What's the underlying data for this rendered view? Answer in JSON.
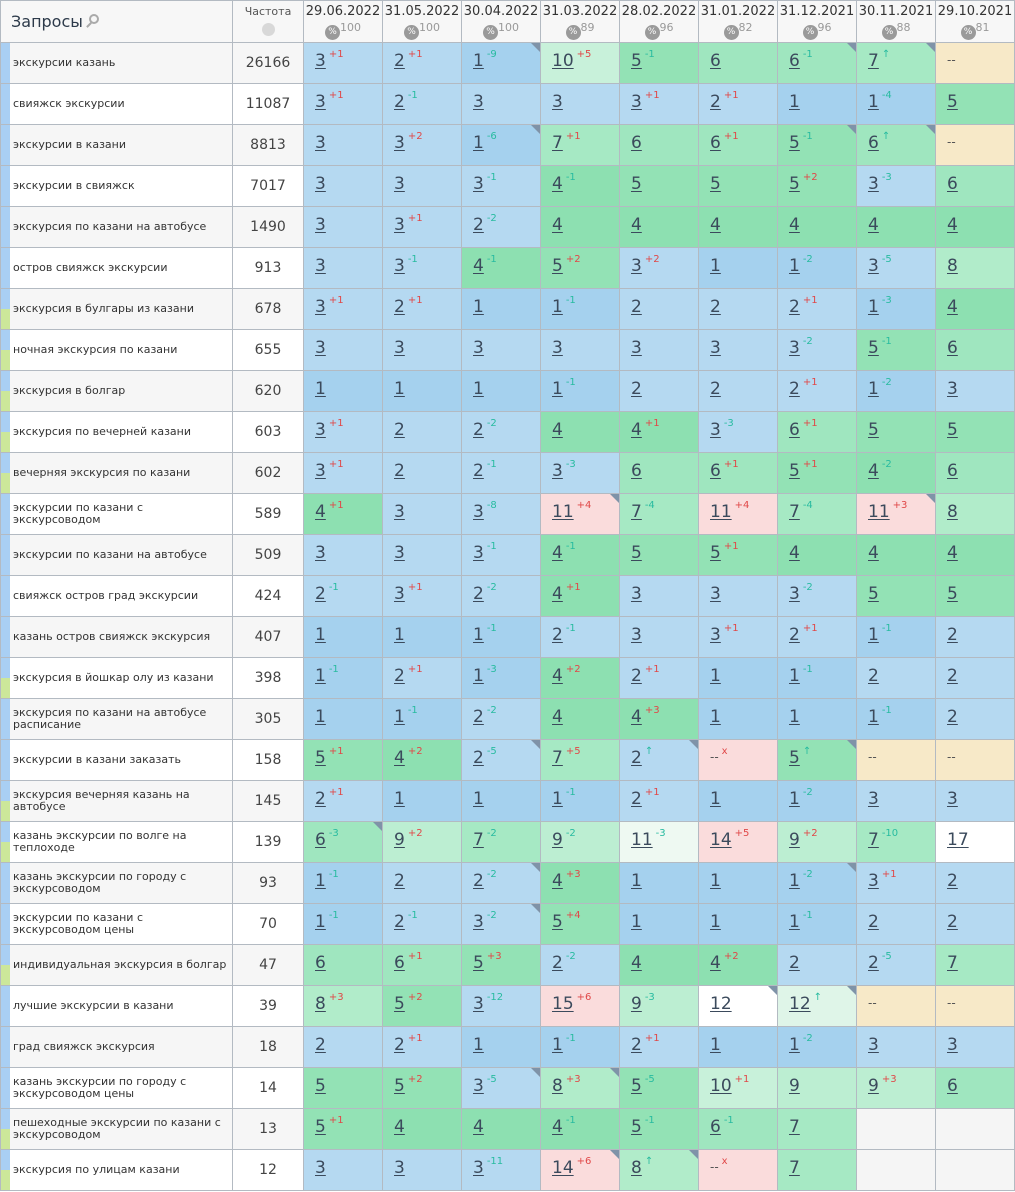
{
  "header": {
    "queries_title": "Запросы",
    "freq_title": "Частота",
    "dates": [
      {
        "date": "29.06.2022",
        "pct": "100"
      },
      {
        "date": "31.05.2022",
        "pct": "100"
      },
      {
        "date": "30.04.2022",
        "pct": "100"
      },
      {
        "date": "31.03.2022",
        "pct": "89"
      },
      {
        "date": "28.02.2022",
        "pct": "96"
      },
      {
        "date": "31.01.2022",
        "pct": "82"
      },
      {
        "date": "31.12.2021",
        "pct": "96"
      },
      {
        "date": "30.11.2021",
        "pct": "88"
      },
      {
        "date": "29.10.2021",
        "pct": "81"
      }
    ]
  },
  "icons": {
    "search": "search-icon",
    "globe": "globe-icon",
    "percent": "percent-icon"
  },
  "colors": {
    "worse": "#e04848",
    "better": "#28bba0",
    "pos1": "#a5d1ee",
    "pos2_3": "#b5d9f1",
    "pos4_5": "#8fe1b2",
    "dropped": "#fadcdc",
    "none": "#f7e9c8"
  },
  "rows": [
    {
      "q": "экскурсии казань",
      "freq": "26166",
      "tag": "",
      "cells": [
        [
          "3",
          "+1"
        ],
        [
          "2",
          "+1"
        ],
        [
          "1",
          "-9",
          1
        ],
        [
          "10",
          "+5"
        ],
        [
          "5",
          "-1"
        ],
        [
          "6",
          ""
        ],
        [
          "6",
          "-1",
          1
        ],
        [
          "7",
          "↑",
          1
        ],
        [
          "--",
          ""
        ]
      ]
    },
    {
      "q": "свияжск экскурсии",
      "freq": "11087",
      "tag": "",
      "cells": [
        [
          "3",
          "+1"
        ],
        [
          "2",
          "-1"
        ],
        [
          "3",
          ""
        ],
        [
          "3",
          ""
        ],
        [
          "3",
          "+1"
        ],
        [
          "2",
          "+1"
        ],
        [
          "1",
          ""
        ],
        [
          "1",
          "-4"
        ],
        [
          "5",
          ""
        ]
      ]
    },
    {
      "q": "экскурсии в казани",
      "freq": "8813",
      "tag": "",
      "cells": [
        [
          "3",
          ""
        ],
        [
          "3",
          "+2"
        ],
        [
          "1",
          "-6",
          1
        ],
        [
          "7",
          "+1"
        ],
        [
          "6",
          ""
        ],
        [
          "6",
          "+1"
        ],
        [
          "5",
          "-1",
          1
        ],
        [
          "6",
          "↑",
          1
        ],
        [
          "--",
          ""
        ]
      ]
    },
    {
      "q": "экскурсии в свияжск",
      "freq": "7017",
      "tag": "",
      "cells": [
        [
          "3",
          ""
        ],
        [
          "3",
          ""
        ],
        [
          "3",
          "-1"
        ],
        [
          "4",
          "-1"
        ],
        [
          "5",
          ""
        ],
        [
          "5",
          ""
        ],
        [
          "5",
          "+2"
        ],
        [
          "3",
          "-3"
        ],
        [
          "6",
          ""
        ]
      ]
    },
    {
      "q": "экскурсия по казани на автобусе",
      "freq": "1490",
      "tag": "",
      "cells": [
        [
          "3",
          ""
        ],
        [
          "3",
          "+1"
        ],
        [
          "2",
          "-2"
        ],
        [
          "4",
          ""
        ],
        [
          "4",
          ""
        ],
        [
          "4",
          ""
        ],
        [
          "4",
          ""
        ],
        [
          "4",
          ""
        ],
        [
          "4",
          ""
        ]
      ]
    },
    {
      "q": "остров свияжск экскурсии",
      "freq": "913",
      "tag": "",
      "cells": [
        [
          "3",
          ""
        ],
        [
          "3",
          "-1"
        ],
        [
          "4",
          "-1"
        ],
        [
          "5",
          "+2"
        ],
        [
          "3",
          "+2"
        ],
        [
          "1",
          ""
        ],
        [
          "1",
          "-2"
        ],
        [
          "3",
          "-5"
        ],
        [
          "8",
          ""
        ]
      ]
    },
    {
      "q": "экскурсия в булгары из казани",
      "freq": "678",
      "tag": "green",
      "cells": [
        [
          "3",
          "+1"
        ],
        [
          "2",
          "+1"
        ],
        [
          "1",
          ""
        ],
        [
          "1",
          "-1"
        ],
        [
          "2",
          ""
        ],
        [
          "2",
          ""
        ],
        [
          "2",
          "+1"
        ],
        [
          "1",
          "-3"
        ],
        [
          "4",
          ""
        ]
      ]
    },
    {
      "q": "ночная экскурсия по казани",
      "freq": "655",
      "tag": "green",
      "cells": [
        [
          "3",
          ""
        ],
        [
          "3",
          ""
        ],
        [
          "3",
          ""
        ],
        [
          "3",
          ""
        ],
        [
          "3",
          ""
        ],
        [
          "3",
          ""
        ],
        [
          "3",
          "-2"
        ],
        [
          "5",
          "-1"
        ],
        [
          "6",
          ""
        ]
      ]
    },
    {
      "q": "экскурсия в болгар",
      "freq": "620",
      "tag": "green",
      "cells": [
        [
          "1",
          ""
        ],
        [
          "1",
          ""
        ],
        [
          "1",
          ""
        ],
        [
          "1",
          "-1"
        ],
        [
          "2",
          ""
        ],
        [
          "2",
          ""
        ],
        [
          "2",
          "+1"
        ],
        [
          "1",
          "-2"
        ],
        [
          "3",
          ""
        ]
      ]
    },
    {
      "q": "экскурсия по вечерней казани",
      "freq": "603",
      "tag": "green",
      "cells": [
        [
          "3",
          "+1"
        ],
        [
          "2",
          ""
        ],
        [
          "2",
          "-2"
        ],
        [
          "4",
          ""
        ],
        [
          "4",
          "+1"
        ],
        [
          "3",
          "-3"
        ],
        [
          "6",
          "+1"
        ],
        [
          "5",
          ""
        ],
        [
          "5",
          ""
        ]
      ]
    },
    {
      "q": "вечерняя экскурсия по казани",
      "freq": "602",
      "tag": "green",
      "cells": [
        [
          "3",
          "+1"
        ],
        [
          "2",
          ""
        ],
        [
          "2",
          "-1"
        ],
        [
          "3",
          "-3"
        ],
        [
          "6",
          ""
        ],
        [
          "6",
          "+1"
        ],
        [
          "5",
          "+1"
        ],
        [
          "4",
          "-2"
        ],
        [
          "6",
          ""
        ]
      ]
    },
    {
      "q": "экскурсии по казани с экскурсоводом",
      "freq": "589",
      "tag": "",
      "cells": [
        [
          "4",
          "+1"
        ],
        [
          "3",
          ""
        ],
        [
          "3",
          "-8"
        ],
        [
          "11",
          "+4",
          1
        ],
        [
          "7",
          "-4"
        ],
        [
          "11",
          "+4"
        ],
        [
          "7",
          "-4"
        ],
        [
          "11",
          "+3",
          1
        ],
        [
          "8",
          ""
        ]
      ]
    },
    {
      "q": "экскурсии по казани на автобусе",
      "freq": "509",
      "tag": "",
      "cells": [
        [
          "3",
          ""
        ],
        [
          "3",
          ""
        ],
        [
          "3",
          "-1"
        ],
        [
          "4",
          "-1"
        ],
        [
          "5",
          ""
        ],
        [
          "5",
          "+1"
        ],
        [
          "4",
          ""
        ],
        [
          "4",
          ""
        ],
        [
          "4",
          ""
        ]
      ]
    },
    {
      "q": "свияжск остров град экскурсии",
      "freq": "424",
      "tag": "",
      "cells": [
        [
          "2",
          "-1"
        ],
        [
          "3",
          "+1"
        ],
        [
          "2",
          "-2"
        ],
        [
          "4",
          "+1"
        ],
        [
          "3",
          ""
        ],
        [
          "3",
          ""
        ],
        [
          "3",
          "-2"
        ],
        [
          "5",
          ""
        ],
        [
          "5",
          ""
        ]
      ]
    },
    {
      "q": "казань остров свияжск экскурсия",
      "freq": "407",
      "tag": "",
      "cells": [
        [
          "1",
          ""
        ],
        [
          "1",
          ""
        ],
        [
          "1",
          "-1"
        ],
        [
          "2",
          "-1"
        ],
        [
          "3",
          ""
        ],
        [
          "3",
          "+1"
        ],
        [
          "2",
          "+1"
        ],
        [
          "1",
          "-1"
        ],
        [
          "2",
          ""
        ]
      ]
    },
    {
      "q": "экскурсия в йошкар олу из казани",
      "freq": "398",
      "tag": "green",
      "cells": [
        [
          "1",
          "-1"
        ],
        [
          "2",
          "+1"
        ],
        [
          "1",
          "-3"
        ],
        [
          "4",
          "+2"
        ],
        [
          "2",
          "+1"
        ],
        [
          "1",
          ""
        ],
        [
          "1",
          "-1"
        ],
        [
          "2",
          ""
        ],
        [
          "2",
          ""
        ]
      ]
    },
    {
      "q": "экскурсия по казани на автобусе расписание",
      "freq": "305",
      "tag": "",
      "cells": [
        [
          "1",
          ""
        ],
        [
          "1",
          "-1"
        ],
        [
          "2",
          "-2"
        ],
        [
          "4",
          ""
        ],
        [
          "4",
          "+3"
        ],
        [
          "1",
          ""
        ],
        [
          "1",
          ""
        ],
        [
          "1",
          "-1"
        ],
        [
          "2",
          ""
        ]
      ]
    },
    {
      "q": "экскурсии в казани заказать",
      "freq": "158",
      "tag": "",
      "cells": [
        [
          "5",
          "+1"
        ],
        [
          "4",
          "+2"
        ],
        [
          "2",
          "-5",
          1
        ],
        [
          "7",
          "+5"
        ],
        [
          "2",
          "↑",
          1
        ],
        [
          "--",
          "x"
        ],
        [
          "5",
          "↑",
          1
        ],
        [
          "--",
          ""
        ],
        [
          "--",
          ""
        ]
      ]
    },
    {
      "q": "экскурсия вечерняя казань на автобусе",
      "freq": "145",
      "tag": "green",
      "cells": [
        [
          "2",
          "+1"
        ],
        [
          "1",
          ""
        ],
        [
          "1",
          ""
        ],
        [
          "1",
          "-1"
        ],
        [
          "2",
          "+1"
        ],
        [
          "1",
          ""
        ],
        [
          "1",
          "-2"
        ],
        [
          "3",
          ""
        ],
        [
          "3",
          ""
        ]
      ]
    },
    {
      "q": "казань экскурсии по волге на теплоходе",
      "freq": "139",
      "tag": "green",
      "cells": [
        [
          "6",
          "-3",
          1
        ],
        [
          "9",
          "+2"
        ],
        [
          "7",
          "-2"
        ],
        [
          "9",
          "-2"
        ],
        [
          "11",
          "-3"
        ],
        [
          "14",
          "+5"
        ],
        [
          "9",
          "+2"
        ],
        [
          "7",
          "-10"
        ],
        [
          "17",
          ""
        ]
      ]
    },
    {
      "q": "казань экскурсии по городу с экскурсоводом",
      "freq": "93",
      "tag": "",
      "cells": [
        [
          "1",
          "-1"
        ],
        [
          "2",
          ""
        ],
        [
          "2",
          "-2",
          1
        ],
        [
          "4",
          "+3"
        ],
        [
          "1",
          ""
        ],
        [
          "1",
          ""
        ],
        [
          "1",
          "-2",
          1
        ],
        [
          "3",
          "+1"
        ],
        [
          "2",
          ""
        ]
      ]
    },
    {
      "q": "экскурсии по казани с экскурсоводом цены",
      "freq": "70",
      "tag": "",
      "cells": [
        [
          "1",
          "-1"
        ],
        [
          "2",
          "-1"
        ],
        [
          "3",
          "-2",
          1
        ],
        [
          "5",
          "+4"
        ],
        [
          "1",
          ""
        ],
        [
          "1",
          ""
        ],
        [
          "1",
          "-1"
        ],
        [
          "2",
          ""
        ],
        [
          "2",
          ""
        ]
      ]
    },
    {
      "q": "индивидуальная экскурсия в болгар",
      "freq": "47",
      "tag": "green",
      "cells": [
        [
          "6",
          ""
        ],
        [
          "6",
          "+1"
        ],
        [
          "5",
          "+3"
        ],
        [
          "2",
          "-2"
        ],
        [
          "4",
          ""
        ],
        [
          "4",
          "+2"
        ],
        [
          "2",
          ""
        ],
        [
          "2",
          "-5"
        ],
        [
          "7",
          ""
        ]
      ]
    },
    {
      "q": "лучшие экскурсии в казани",
      "freq": "39",
      "tag": "",
      "cells": [
        [
          "8",
          "+3"
        ],
        [
          "5",
          "+2"
        ],
        [
          "3",
          "-12"
        ],
        [
          "15",
          "+6"
        ],
        [
          "9",
          "-3"
        ],
        [
          "12",
          "",
          1
        ],
        [
          "12",
          "↑",
          1
        ],
        [
          "--",
          ""
        ],
        [
          "--",
          ""
        ]
      ]
    },
    {
      "q": "град свияжск экскурсия",
      "freq": "18",
      "tag": "",
      "cells": [
        [
          "2",
          ""
        ],
        [
          "2",
          "+1"
        ],
        [
          "1",
          ""
        ],
        [
          "1",
          "-1"
        ],
        [
          "2",
          "+1"
        ],
        [
          "1",
          ""
        ],
        [
          "1",
          "-2"
        ],
        [
          "3",
          ""
        ],
        [
          "3",
          ""
        ]
      ]
    },
    {
      "q": "казань экскурсии по городу с экскурсоводом цены",
      "freq": "14",
      "tag": "",
      "cells": [
        [
          "5",
          ""
        ],
        [
          "5",
          "+2"
        ],
        [
          "3",
          "-5",
          1
        ],
        [
          "8",
          "+3",
          1
        ],
        [
          "5",
          "-5"
        ],
        [
          "10",
          "+1"
        ],
        [
          "9",
          ""
        ],
        [
          "9",
          "+3"
        ],
        [
          "6",
          ""
        ]
      ]
    },
    {
      "q": "пешеходные экскурсии по казани с экскурсоводом",
      "freq": "13",
      "tag": "green",
      "cells": [
        [
          "5",
          "+1"
        ],
        [
          "4",
          ""
        ],
        [
          "4",
          ""
        ],
        [
          "4",
          "-1"
        ],
        [
          "5",
          "-1"
        ],
        [
          "6",
          "-1"
        ],
        [
          "7",
          ""
        ],
        [
          "",
          ""
        ],
        [
          "",
          ""
        ]
      ]
    },
    {
      "q": "экскурсия по улицам казани",
      "freq": "12",
      "tag": "green",
      "cells": [
        [
          "3",
          ""
        ],
        [
          "3",
          ""
        ],
        [
          "3",
          "-11"
        ],
        [
          "14",
          "+6",
          1
        ],
        [
          "8",
          "↑",
          1
        ],
        [
          "--",
          "x"
        ],
        [
          "7",
          ""
        ],
        [
          "",
          ""
        ],
        [
          "",
          ""
        ]
      ]
    }
  ]
}
